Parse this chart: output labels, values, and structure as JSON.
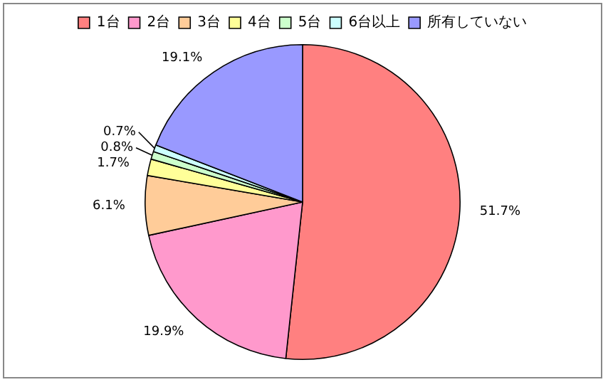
{
  "chart_data": {
    "type": "pie",
    "categories": [
      "1台",
      "2台",
      "3台",
      "4台",
      "5台",
      "6台以上",
      "所有していない"
    ],
    "values": [
      51.7,
      19.9,
      6.1,
      1.7,
      0.8,
      0.7,
      19.1
    ],
    "colors": [
      "#ff8080",
      "#ff99cc",
      "#ffcc99",
      "#ffff99",
      "#ccffcc",
      "#ccffff",
      "#9999ff"
    ],
    "value_labels": [
      "51.7%",
      "19.9%",
      "6.1%",
      "1.7%",
      "0.8%",
      "0.7%",
      "19.1%"
    ],
    "legend": "top"
  }
}
